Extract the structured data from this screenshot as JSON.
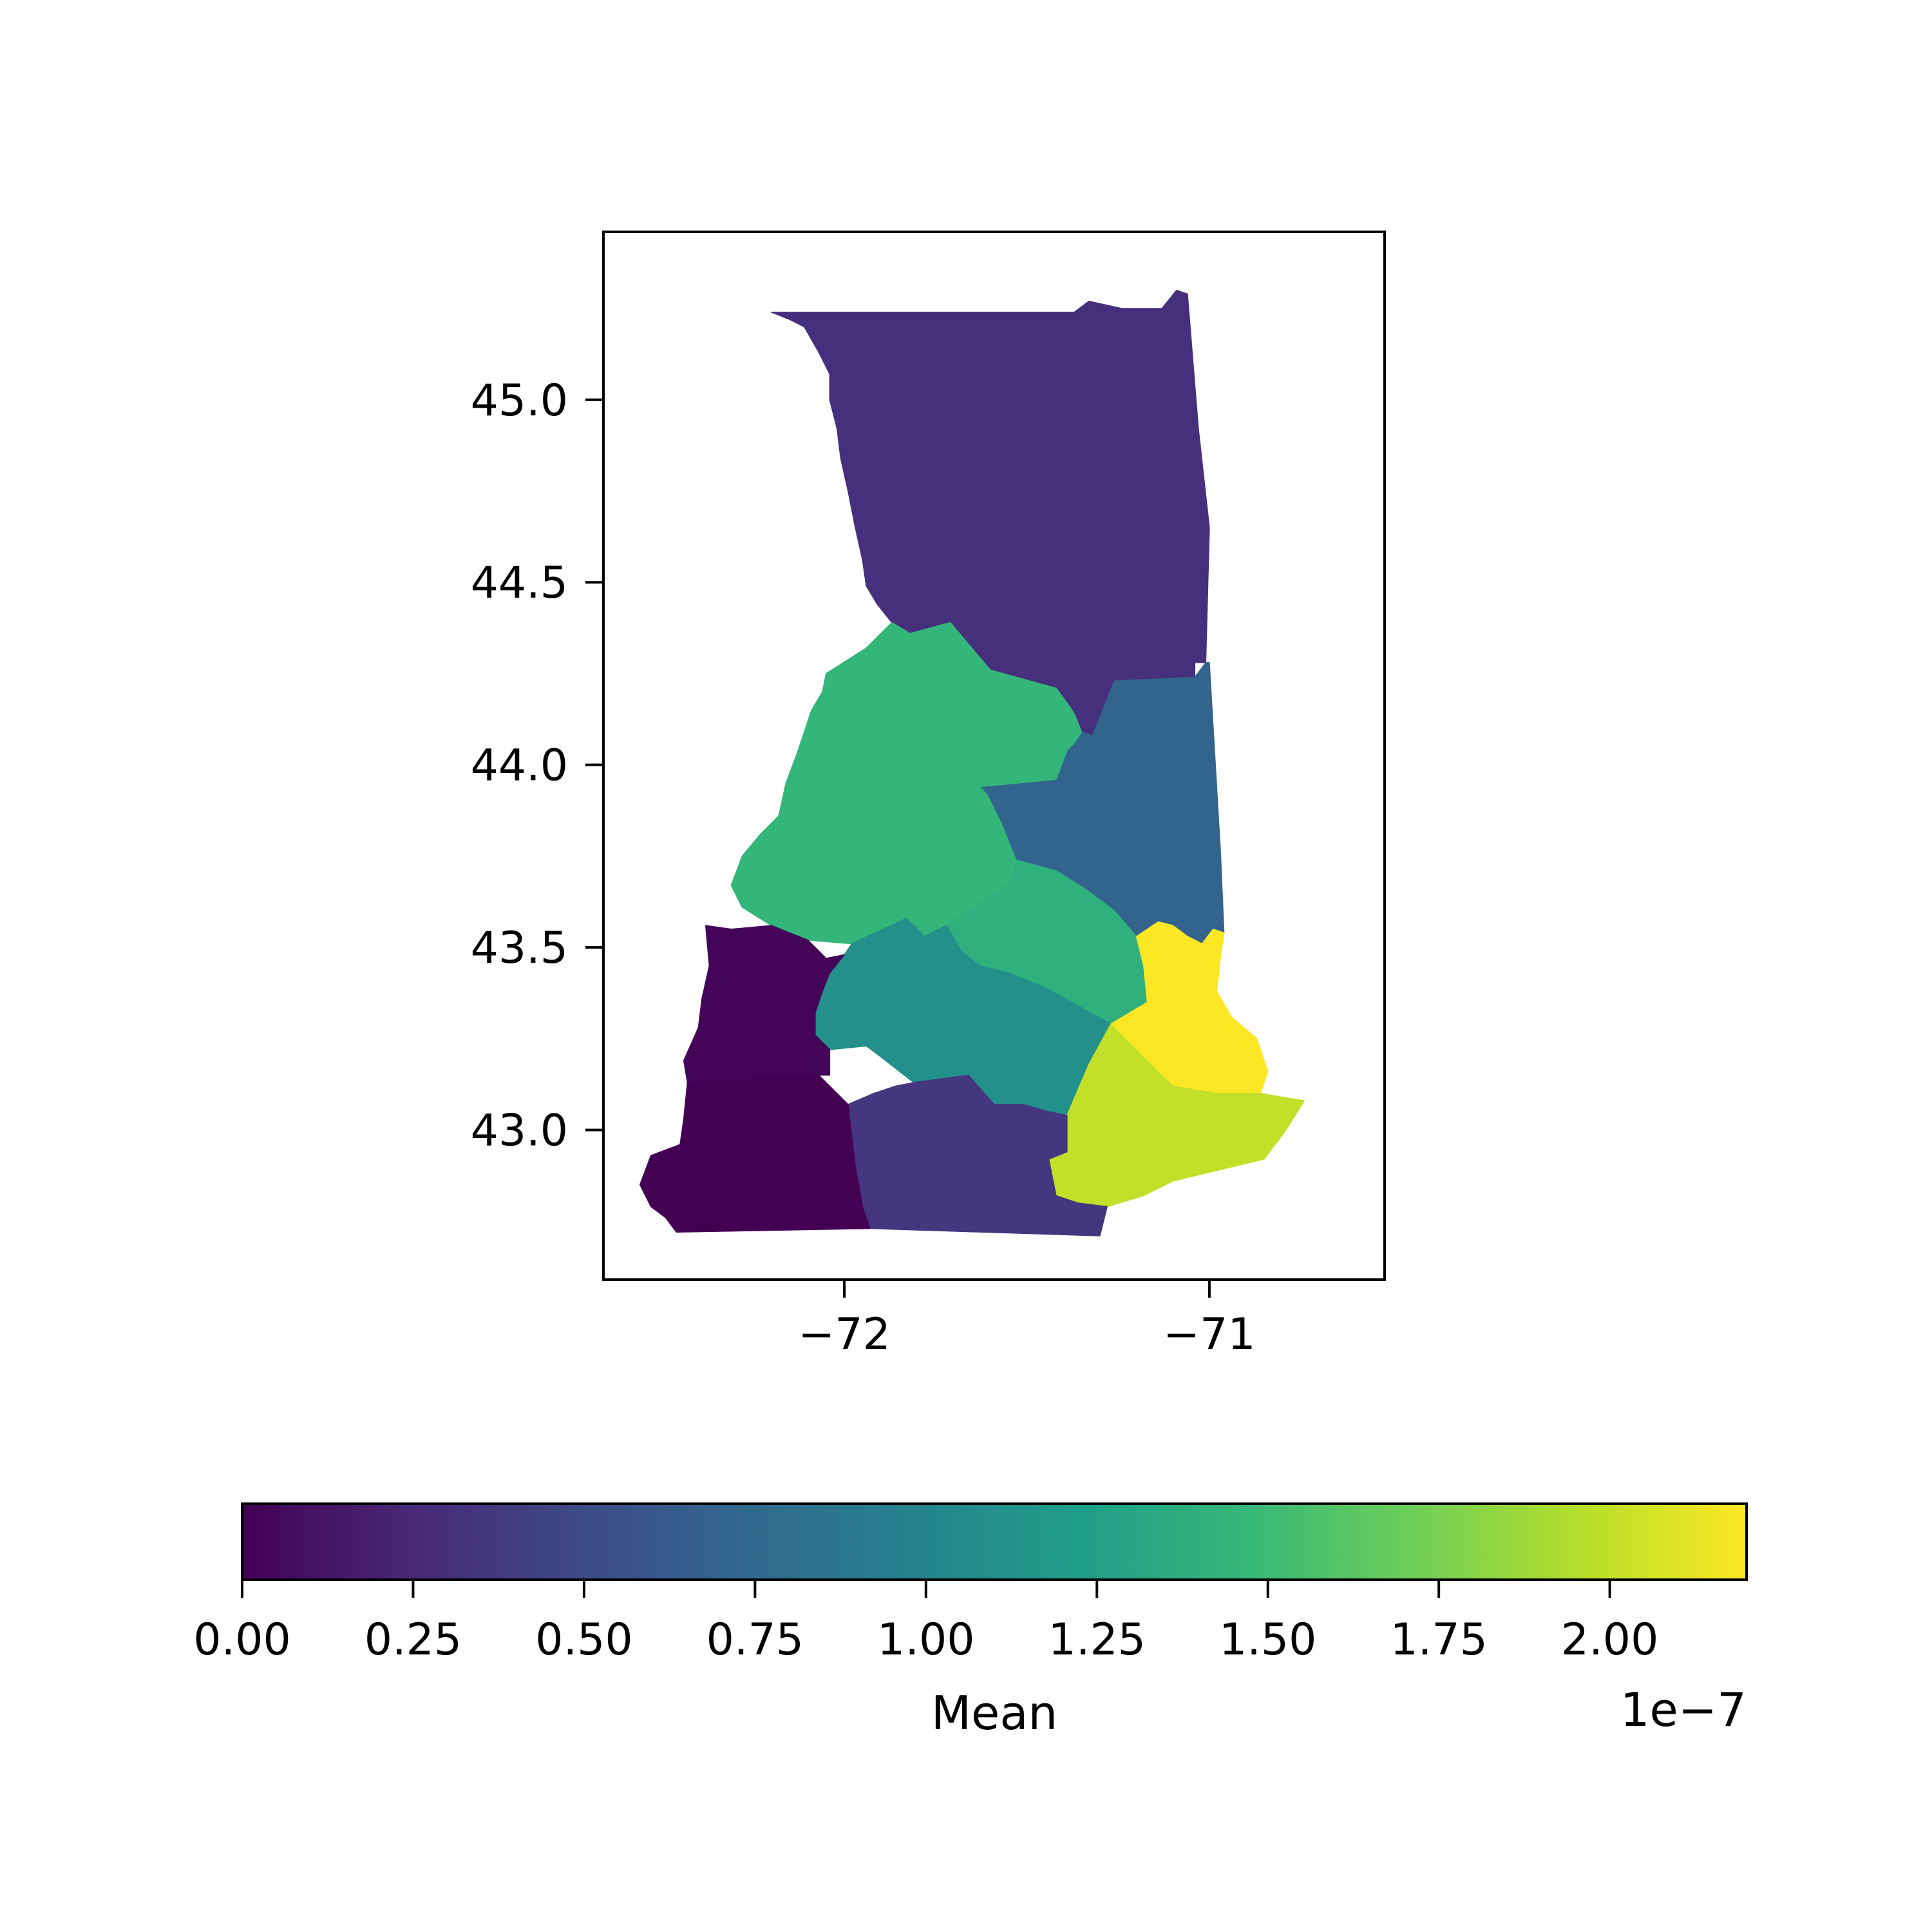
{
  "chart_data": {
    "type": "choropleth",
    "map": {
      "x_ticks": [
        {
          "value": -72,
          "label": "−72"
        },
        {
          "value": -71,
          "label": "−71"
        }
      ],
      "y_ticks": [
        {
          "value": 45.0,
          "label": "45.0"
        },
        {
          "value": 44.5,
          "label": "44.5"
        },
        {
          "value": 44.0,
          "label": "44.0"
        },
        {
          "value": 43.5,
          "label": "43.5"
        },
        {
          "value": 43.0,
          "label": "43.0"
        }
      ],
      "xlim": [
        -72.66,
        -70.52
      ],
      "ylim": [
        42.59,
        45.46
      ],
      "regions": [
        {
          "id": "north",
          "value": 3e-08,
          "outline": [
            [
              -71.44,
              45.24
            ],
            [
              -71.37,
              45.24
            ],
            [
              -71.33,
              45.27
            ],
            [
              -71.24,
              45.25
            ],
            [
              -71.2,
              45.25
            ],
            [
              -71.13,
              45.25
            ],
            [
              -71.09,
              45.3
            ],
            [
              -71.06,
              45.29
            ],
            [
              -71.03,
              44.92
            ],
            [
              -71.0,
              44.65
            ],
            [
              -71.01,
              44.28
            ],
            [
              -71.04,
              44.28
            ],
            [
              -71.04,
              44.24
            ],
            [
              -71.26,
              44.23
            ],
            [
              -71.32,
              44.08
            ],
            [
              -71.35,
              44.09
            ],
            [
              -71.37,
              44.14
            ],
            [
              -71.39,
              44.17
            ],
            [
              -71.42,
              44.21
            ],
            [
              -71.6,
              44.26
            ],
            [
              -71.71,
              44.39
            ],
            [
              -71.82,
              44.36
            ],
            [
              -71.87,
              44.39
            ],
            [
              -71.91,
              44.44
            ],
            [
              -71.94,
              44.49
            ],
            [
              -71.95,
              44.56
            ],
            [
              -71.97,
              44.65
            ],
            [
              -71.99,
              44.75
            ],
            [
              -72.01,
              44.84
            ],
            [
              -72.02,
              44.92
            ],
            [
              -72.04,
              45.0
            ],
            [
              -72.04,
              45.07
            ],
            [
              -72.07,
              45.13
            ],
            [
              -72.11,
              45.2
            ],
            [
              -72.15,
              45.22
            ],
            [
              -72.2,
              45.24
            ]
          ]
        },
        {
          "id": "east-central",
          "value": 7e-08,
          "outline": [
            [
              -71.04,
              44.24
            ],
            [
              -71.01,
              44.28
            ],
            [
              -71.0,
              44.28
            ],
            [
              -70.97,
              43.77
            ],
            [
              -70.96,
              43.54
            ],
            [
              -70.99,
              43.55
            ],
            [
              -71.02,
              43.51
            ],
            [
              -71.06,
              43.53
            ],
            [
              -71.1,
              43.56
            ],
            [
              -71.14,
              43.57
            ],
            [
              -71.2,
              43.53
            ],
            [
              -71.26,
              43.6
            ],
            [
              -71.34,
              43.66
            ],
            [
              -71.42,
              43.71
            ],
            [
              -71.53,
              43.74
            ],
            [
              -71.57,
              43.84
            ],
            [
              -71.61,
              43.92
            ],
            [
              -71.63,
              43.94
            ],
            [
              -71.42,
              43.96
            ],
            [
              -71.39,
              44.04
            ],
            [
              -71.37,
              44.06
            ],
            [
              -71.35,
              44.09
            ],
            [
              -71.32,
              44.08
            ],
            [
              -71.26,
              44.23
            ]
          ]
        },
        {
          "id": "west-central",
          "value": 1.45e-07,
          "outline": [
            [
              -71.87,
              44.39
            ],
            [
              -71.82,
              44.36
            ],
            [
              -71.71,
              44.39
            ],
            [
              -71.6,
              44.26
            ],
            [
              -71.42,
              44.21
            ],
            [
              -71.39,
              44.17
            ],
            [
              -71.37,
              44.14
            ],
            [
              -71.35,
              44.09
            ],
            [
              -71.37,
              44.06
            ],
            [
              -71.39,
              44.04
            ],
            [
              -71.42,
              43.96
            ],
            [
              -71.63,
              43.94
            ],
            [
              -71.61,
              43.92
            ],
            [
              -71.57,
              43.84
            ],
            [
              -71.53,
              43.74
            ],
            [
              -71.54,
              43.68
            ],
            [
              -71.72,
              43.56
            ],
            [
              -71.78,
              43.53
            ],
            [
              -71.83,
              43.58
            ],
            [
              -71.98,
              43.51
            ],
            [
              -72.1,
              43.52
            ],
            [
              -72.2,
              43.56
            ],
            [
              -72.28,
              43.61
            ],
            [
              -72.31,
              43.67
            ],
            [
              -72.28,
              43.75
            ],
            [
              -72.23,
              43.81
            ],
            [
              -72.18,
              43.86
            ],
            [
              -72.16,
              43.95
            ],
            [
              -72.13,
              44.03
            ],
            [
              -72.11,
              44.09
            ],
            [
              -72.09,
              44.15
            ],
            [
              -72.06,
              44.2
            ],
            [
              -72.05,
              44.25
            ],
            [
              -71.94,
              44.32
            ]
          ]
        },
        {
          "id": "center",
          "value": 1.4e-07,
          "outline": [
            [
              -71.53,
              43.74
            ],
            [
              -71.42,
              43.71
            ],
            [
              -71.34,
              43.66
            ],
            [
              -71.26,
              43.6
            ],
            [
              -71.2,
              43.53
            ],
            [
              -71.18,
              43.45
            ],
            [
              -71.17,
              43.35
            ],
            [
              -71.27,
              43.29
            ],
            [
              -71.45,
              43.39
            ],
            [
              -71.55,
              43.43
            ],
            [
              -71.63,
              43.45
            ],
            [
              -71.68,
              43.49
            ],
            [
              -71.72,
              43.56
            ],
            [
              -71.54,
              43.68
            ]
          ]
        },
        {
          "id": "south-central",
          "value": 1.1e-07,
          "outline": [
            [
              -71.72,
              43.56
            ],
            [
              -71.68,
              43.49
            ],
            [
              -71.63,
              43.45
            ],
            [
              -71.55,
              43.43
            ],
            [
              -71.45,
              43.39
            ],
            [
              -71.27,
              43.29
            ],
            [
              -71.33,
              43.18
            ],
            [
              -71.39,
              43.04
            ],
            [
              -71.44,
              43.05
            ],
            [
              -71.51,
              43.07
            ],
            [
              -71.59,
              43.07
            ],
            [
              -71.66,
              43.15
            ],
            [
              -71.81,
              43.13
            ],
            [
              -71.9,
              43.2
            ],
            [
              -71.94,
              43.23
            ],
            [
              -72.04,
              43.22
            ],
            [
              -72.08,
              43.26
            ],
            [
              -72.08,
              43.32
            ],
            [
              -72.06,
              43.38
            ],
            [
              -72.04,
              43.43
            ],
            [
              -72.0,
              43.48
            ],
            [
              -71.98,
              43.51
            ],
            [
              -71.83,
              43.58
            ],
            [
              -71.78,
              43.53
            ]
          ]
        },
        {
          "id": "southeast",
          "value": 2.2e-07,
          "outline": [
            [
              -71.06,
              43.53
            ],
            [
              -71.02,
              43.51
            ],
            [
              -70.99,
              43.55
            ],
            [
              -70.96,
              43.54
            ],
            [
              -70.97,
              43.47
            ],
            [
              -70.98,
              43.38
            ],
            [
              -70.94,
              43.31
            ],
            [
              -70.87,
              43.25
            ],
            [
              -70.84,
              43.16
            ],
            [
              -70.86,
              43.1
            ],
            [
              -70.98,
              43.1
            ],
            [
              -71.1,
              43.12
            ],
            [
              -71.27,
              43.29
            ],
            [
              -71.17,
              43.35
            ],
            [
              -71.18,
              43.45
            ],
            [
              -71.2,
              43.53
            ],
            [
              -71.14,
              43.57
            ],
            [
              -71.1,
              43.56
            ]
          ]
        },
        {
          "id": "coastal-south",
          "value": 2e-07,
          "outline": [
            [
              -71.27,
              43.29
            ],
            [
              -71.1,
              43.12
            ],
            [
              -70.98,
              43.1
            ],
            [
              -70.86,
              43.1
            ],
            [
              -70.74,
              43.08
            ],
            [
              -70.79,
              43.0
            ],
            [
              -70.85,
              42.92
            ],
            [
              -71.1,
              42.86
            ],
            [
              -71.18,
              42.82
            ],
            [
              -71.28,
              42.79
            ],
            [
              -71.36,
              42.8
            ],
            [
              -71.42,
              42.82
            ],
            [
              -71.44,
              42.92
            ],
            [
              -71.39,
              42.94
            ],
            [
              -71.39,
              43.04
            ],
            [
              -71.33,
              43.18
            ]
          ]
        },
        {
          "id": "south-middle",
          "value": 3.5e-08,
          "outline": [
            [
              -71.66,
              43.15
            ],
            [
              -71.59,
              43.07
            ],
            [
              -71.51,
              43.07
            ],
            [
              -71.44,
              43.05
            ],
            [
              -71.39,
              43.04
            ],
            [
              -71.39,
              42.94
            ],
            [
              -71.44,
              42.92
            ],
            [
              -71.42,
              42.82
            ],
            [
              -71.36,
              42.8
            ],
            [
              -71.28,
              42.79
            ],
            [
              -71.3,
              42.71
            ],
            [
              -71.62,
              42.72
            ],
            [
              -71.93,
              42.73
            ],
            [
              -71.95,
              42.79
            ],
            [
              -71.97,
              42.9
            ],
            [
              -71.99,
              43.07
            ],
            [
              -71.92,
              43.1
            ],
            [
              -71.86,
              43.12
            ],
            [
              -71.81,
              43.13
            ]
          ]
        },
        {
          "id": "southwest",
          "value": 0.0,
          "outline": [
            [
              -71.99,
              43.07
            ],
            [
              -71.97,
              42.9
            ],
            [
              -71.95,
              42.79
            ],
            [
              -71.93,
              42.73
            ],
            [
              -72.46,
              42.72
            ],
            [
              -72.49,
              42.76
            ],
            [
              -72.53,
              42.79
            ],
            [
              -72.56,
              42.85
            ],
            [
              -72.53,
              42.93
            ],
            [
              -72.45,
              42.96
            ],
            [
              -72.44,
              43.03
            ],
            [
              -72.43,
              43.13
            ],
            [
              -72.17,
              43.15
            ],
            [
              -72.07,
              43.15
            ]
          ]
        },
        {
          "id": "west",
          "value": 2e-09,
          "outline": [
            [
              -72.43,
              43.13
            ],
            [
              -72.44,
              43.19
            ],
            [
              -72.4,
              43.28
            ],
            [
              -72.39,
              43.36
            ],
            [
              -72.37,
              43.45
            ],
            [
              -72.38,
              43.56
            ],
            [
              -72.31,
              43.55
            ],
            [
              -72.2,
              43.56
            ],
            [
              -72.1,
              43.52
            ],
            [
              -72.05,
              43.47
            ],
            [
              -72.0,
              43.48
            ],
            [
              -72.04,
              43.43
            ],
            [
              -72.06,
              43.38
            ],
            [
              -72.08,
              43.32
            ],
            [
              -72.08,
              43.26
            ],
            [
              -72.04,
              43.22
            ],
            [
              -72.04,
              43.15
            ],
            [
              -72.07,
              43.15
            ],
            [
              -72.17,
              43.15
            ]
          ]
        }
      ]
    },
    "colorbar": {
      "label": "Mean",
      "offset_label": "1e−7",
      "range": [
        0,
        2.2
      ],
      "ticks": [
        {
          "value": 0.0,
          "label": "0.00"
        },
        {
          "value": 0.25,
          "label": "0.25"
        },
        {
          "value": 0.5,
          "label": "0.50"
        },
        {
          "value": 0.75,
          "label": "0.75"
        },
        {
          "value": 1.0,
          "label": "1.00"
        },
        {
          "value": 1.25,
          "label": "1.25"
        },
        {
          "value": 1.5,
          "label": "1.50"
        },
        {
          "value": 1.75,
          "label": "1.75"
        },
        {
          "value": 2.0,
          "label": "2.00"
        }
      ],
      "colormap": [
        "#440154",
        "#482878",
        "#3e4989",
        "#31688e",
        "#26828e",
        "#1f9e89",
        "#35b779",
        "#6ece58",
        "#b5de2b",
        "#fde725"
      ]
    }
  }
}
